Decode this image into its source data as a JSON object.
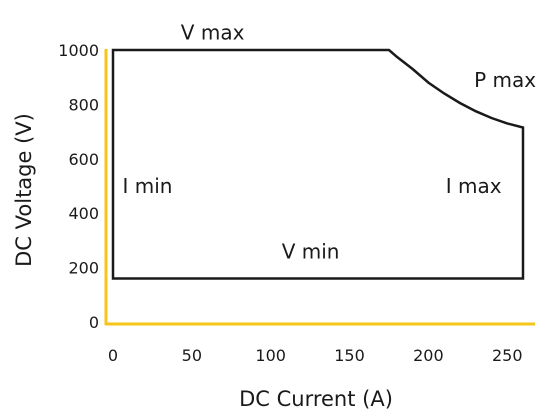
{
  "chart_data": {
    "type": "line",
    "xlabel": "DC Current (A)",
    "ylabel": "DC Voltage (V)",
    "xlim": [
      0,
      260
    ],
    "ylim": [
      0,
      1000
    ],
    "x_ticks": [
      "0",
      "50",
      "100",
      "150",
      "200",
      "250"
    ],
    "y_ticks": [
      "0",
      "200",
      "400",
      "600",
      "800",
      "1000"
    ],
    "grid": false,
    "axis_color": "#f5c518",
    "line_color": "#1a1a1a",
    "series": [
      {
        "x": [
          0,
          0,
          175,
          180,
          190,
          200,
          210,
          220,
          230,
          240,
          250,
          260,
          260,
          0
        ],
        "y": [
          160,
          1000,
          1000,
          975,
          930,
          880,
          840,
          805,
          775,
          750,
          730,
          715,
          160,
          160
        ]
      }
    ],
    "annotations": [
      {
        "text": "V max",
        "x": 43,
        "y": 1065
      },
      {
        "text": "P max",
        "x": 229,
        "y": 890
      },
      {
        "text": "I min",
        "x": 6,
        "y": 500
      },
      {
        "text": "I max",
        "x": 211,
        "y": 500
      },
      {
        "text": "V min",
        "x": 107,
        "y": 260
      }
    ]
  }
}
